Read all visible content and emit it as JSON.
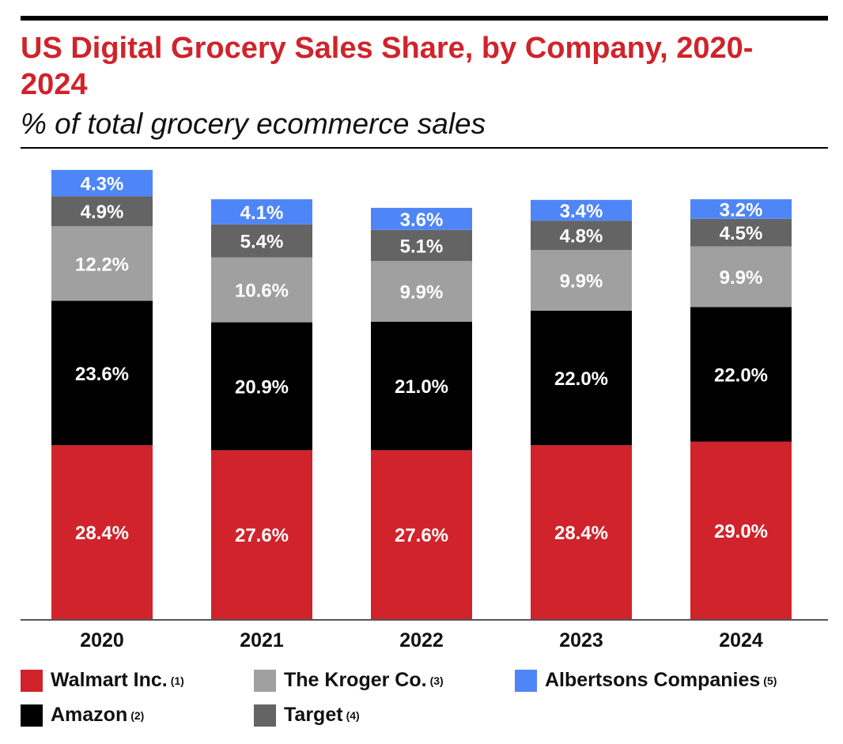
{
  "title": "US Digital Grocery Sales Share, by Company, 2020-2024",
  "subtitle": "% of total grocery ecommerce sales",
  "chart_data": {
    "type": "bar",
    "stacked": true,
    "title": "US Digital Grocery Sales Share, by Company, 2020-2024",
    "subtitle": "% of total grocery ecommerce sales",
    "categories": [
      "2020",
      "2021",
      "2022",
      "2023",
      "2024"
    ],
    "series": [
      {
        "name": "Walmart Inc.",
        "note": "(1)",
        "color": "#d0232b",
        "labelColor": "#ffffff",
        "values": [
          28.4,
          27.6,
          27.6,
          28.4,
          29.0
        ],
        "labels": [
          "28.4%",
          "27.6%",
          "27.6%",
          "28.4%",
          "29.0%"
        ]
      },
      {
        "name": "Amazon",
        "note": "(2)",
        "color": "#000000",
        "labelColor": "#ffffff",
        "values": [
          23.6,
          20.9,
          21.0,
          22.0,
          22.0
        ],
        "labels": [
          "23.6%",
          "20.9%",
          "21.0%",
          "22.0%",
          "22.0%"
        ]
      },
      {
        "name": "The Kroger Co.",
        "note": "(3)",
        "color": "#a0a0a0",
        "labelColor": "#ffffff",
        "values": [
          12.2,
          10.6,
          9.9,
          9.9,
          9.9
        ],
        "labels": [
          "12.2%",
          "10.6%",
          "9.9%",
          "9.9%",
          "9.9%"
        ]
      },
      {
        "name": "Target",
        "note": "(4)",
        "color": "#646464",
        "labelColor": "#ffffff",
        "values": [
          4.9,
          5.4,
          5.1,
          4.8,
          4.5
        ],
        "labels": [
          "4.9%",
          "5.4%",
          "5.1%",
          "4.8%",
          "4.5%"
        ]
      },
      {
        "name": "Albertsons Companies",
        "note": "(5)",
        "color": "#4f86f7",
        "labelColor": "#ffffff",
        "values": [
          4.3,
          4.1,
          3.6,
          3.4,
          3.2
        ],
        "labels": [
          "4.3%",
          "4.1%",
          "3.6%",
          "3.4%",
          "3.2%"
        ]
      }
    ],
    "ylim": [
      0,
      75
    ],
    "xlabel": "",
    "ylabel": "",
    "grid": false,
    "legend": "bottom"
  }
}
